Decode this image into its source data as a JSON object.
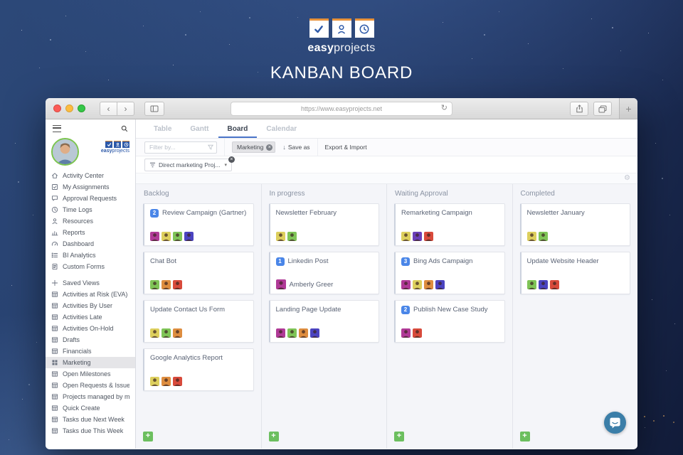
{
  "hero": {
    "brand_bold": "easy",
    "brand_light": "projects",
    "title": "KANBAN BOARD",
    "accent_orange": "#e8923a",
    "brand_blue": "#2d59a8"
  },
  "browser": {
    "url": "https://www.easyprojects.net"
  },
  "sidebar": {
    "brand_bold": "easy",
    "brand_light": "projects",
    "items": [
      {
        "icon": "home",
        "label": "Activity Center"
      },
      {
        "icon": "checkbox",
        "label": "My Assignments"
      },
      {
        "icon": "comment",
        "label": "Approval Requests"
      },
      {
        "icon": "clock",
        "label": "Time Logs"
      },
      {
        "icon": "person",
        "label": "Resources"
      },
      {
        "icon": "chart",
        "label": "Reports"
      },
      {
        "icon": "gauge",
        "label": "Dashboard"
      },
      {
        "icon": "list",
        "label": "BI Analytics"
      },
      {
        "icon": "form",
        "label": "Custom Forms"
      },
      {
        "icon": "plus",
        "label": "Saved Views",
        "section": true
      },
      {
        "icon": "grid",
        "label": "Activities at Risk (EVA)"
      },
      {
        "icon": "grid",
        "label": "Activities By User"
      },
      {
        "icon": "grid",
        "label": "Activities Late"
      },
      {
        "icon": "grid",
        "label": "Activities On-Hold"
      },
      {
        "icon": "grid",
        "label": "Drafts"
      },
      {
        "icon": "grid",
        "label": "Financials"
      },
      {
        "icon": "kanban",
        "label": "Marketing",
        "active": true
      },
      {
        "icon": "grid",
        "label": "Open Milestones"
      },
      {
        "icon": "grid",
        "label": "Open Requests & Issues"
      },
      {
        "icon": "grid",
        "label": "Projects managed by me"
      },
      {
        "icon": "grid",
        "label": "Quick Create"
      },
      {
        "icon": "grid",
        "label": "Tasks due Next Week"
      },
      {
        "icon": "grid",
        "label": "Tasks due This Week"
      }
    ]
  },
  "tabs": [
    {
      "label": "Table",
      "active": false
    },
    {
      "label": "Gantt",
      "active": false
    },
    {
      "label": "Board",
      "active": true
    },
    {
      "label": "Calendar",
      "active": false
    }
  ],
  "toolbar": {
    "filter_placeholder": "Filter by...",
    "chip_label": "Marketing",
    "save_as_label": "Save as",
    "export_import_label": "Export & Import",
    "project_dropdown_value": "Direct marketing Proj..."
  },
  "colors": {
    "badge_blue": "#4a86e8",
    "add_green": "#6cbf5f",
    "chat_blue": "#3b7ea8"
  },
  "board": {
    "add_card_label": "+",
    "columns": [
      {
        "title": "Backlog",
        "cards": [
          {
            "badge": "2",
            "title": "Review Campaign (Gartner)",
            "avatars": [
              "#b03a97",
              "#ddcf5d",
              "#7fc457",
              "#4b43c0"
            ]
          },
          {
            "title": "Chat Bot",
            "avatars": [
              "#7fc457",
              "#de8d3f",
              "#d84a3b"
            ]
          },
          {
            "title": "Update Contact Us Form",
            "avatars": [
              "#ddcf5d",
              "#7fc457",
              "#de8d3f"
            ]
          },
          {
            "title": "Google Analytics Report",
            "avatars": [
              "#ddcf5d",
              "#de8d3f",
              "#d84a3b"
            ]
          }
        ]
      },
      {
        "title": "In progress",
        "cards": [
          {
            "title": "Newsletter February",
            "avatars": [
              "#ddcf5d",
              "#7fc457"
            ]
          },
          {
            "badge": "1",
            "title": "Linkedin Post",
            "assignee": {
              "name": "Amberly Greer",
              "avatar": "#b03a97"
            }
          },
          {
            "title": "Landing Page Update",
            "avatars": [
              "#b03a97",
              "#7fc457",
              "#de8d3f",
              "#4b43c0"
            ]
          }
        ]
      },
      {
        "title": "Waiting Approval",
        "cards": [
          {
            "title": "Remarketing Campaign",
            "avatars": [
              "#ddcf5d",
              "#6b3fb8",
              "#d84a3b"
            ]
          },
          {
            "badge": "3",
            "title": "Bing Ads Campaign",
            "avatars": [
              "#b03a97",
              "#ddcf5d",
              "#de8d3f",
              "#4b43c0"
            ]
          },
          {
            "badge": "2",
            "title": "Publish New Case Study",
            "avatars": [
              "#b03a97",
              "#d84a3b"
            ]
          }
        ]
      },
      {
        "title": "Completed",
        "cards": [
          {
            "title": "Newsletter January",
            "avatars": [
              "#ddcf5d",
              "#7fc457"
            ]
          },
          {
            "title": "Update Website Header",
            "avatars": [
              "#7fc457",
              "#4b43c0",
              "#d84a3b"
            ]
          }
        ]
      }
    ]
  }
}
